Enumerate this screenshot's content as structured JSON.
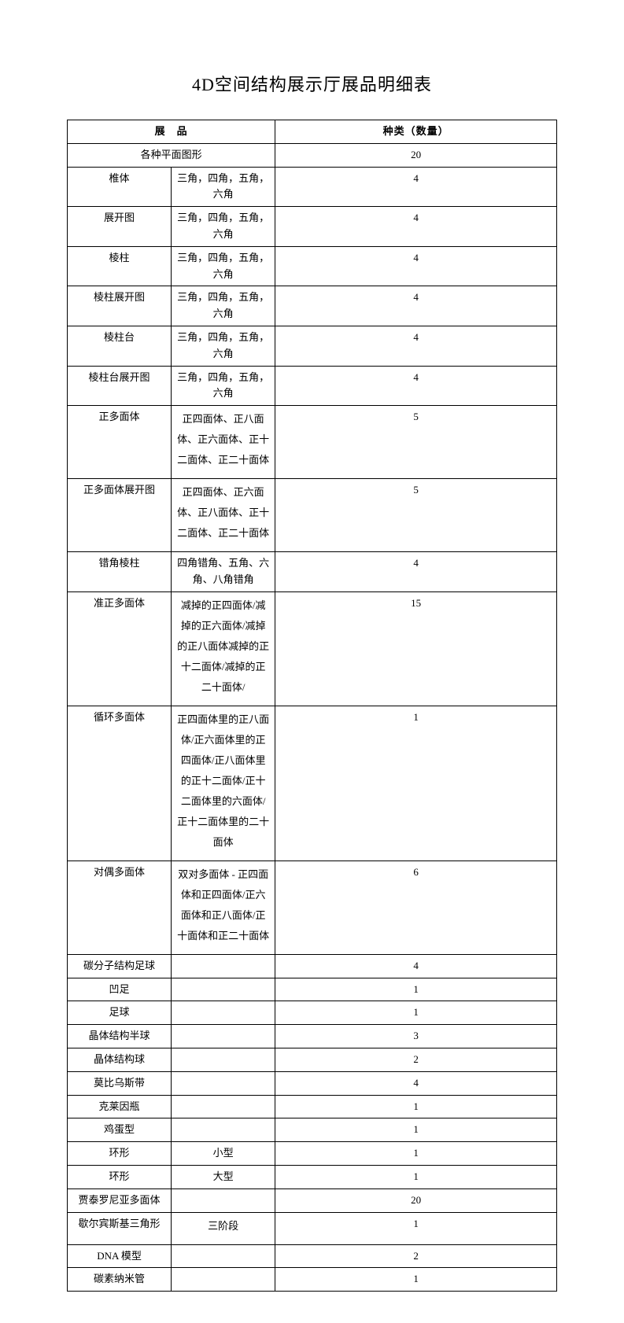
{
  "title": "4D空间结构展示厅展品明细表",
  "headers": {
    "exhibit": "展　品",
    "quantity": "种类（数量）"
  },
  "rows": [
    {
      "name_colspan": true,
      "desc": "各种平面图形",
      "qty": "20"
    },
    {
      "name": "椎体",
      "desc": "三角，四角，五角，六角",
      "qty": "4"
    },
    {
      "name": "展开图",
      "desc": "三角，四角，五角，六角",
      "qty": "4"
    },
    {
      "name": "棱柱",
      "desc": "三角，四角，五角，六角",
      "qty": "4"
    },
    {
      "name": "棱柱展开图",
      "desc": "三角，四角，五角，六角",
      "qty": "4"
    },
    {
      "name": "棱柱台",
      "desc": "三角，四角，五角，六角",
      "qty": "4"
    },
    {
      "name": "棱柱台展开图",
      "desc": "三角，四角，五角，六角",
      "qty": "4"
    },
    {
      "name": "正多面体",
      "desc": "正四面体、正八面体、正六面体、正十二面体、正二十面体",
      "qty": "5",
      "multiline": true
    },
    {
      "name": "正多面体展开图",
      "desc": "正四面体、正六面体、正八面体、正十二面体、正二十面体",
      "qty": "5",
      "multiline": true
    },
    {
      "name": "错角棱柱",
      "desc": "四角错角、五角、六角、八角错角",
      "qty": "4"
    },
    {
      "name": "准正多面体",
      "desc": "减掉的正四面体/减掉的正六面体/减掉的正八面体减掉的正十二面体/减掉的正二十面体/",
      "qty": "15",
      "multiline": true
    },
    {
      "name": "循环多面体",
      "desc": "正四面体里的正八面体/正六面体里的正四面体/正八面体里的正十二面体/正十二面体里的六面体/正十二面体里的二十面体",
      "qty": "1",
      "multiline": true
    },
    {
      "name": "对偶多面体",
      "desc": "双对多面体 - 正四面体和正四面体/正六面体和正八面体/正十面体和正二十面体",
      "qty": "6",
      "multiline": true
    },
    {
      "name": "碳分子结构足球",
      "desc": "",
      "qty": "4",
      "multiline": true
    },
    {
      "name": "凹足",
      "desc": "",
      "qty": "1"
    },
    {
      "name": "足球",
      "desc": "",
      "qty": "1"
    },
    {
      "name": "晶体结构半球",
      "desc": "",
      "qty": "3"
    },
    {
      "name": "晶体结构球",
      "desc": "",
      "qty": "2"
    },
    {
      "name": "莫比乌斯带",
      "desc": "",
      "qty": "4"
    },
    {
      "name": "克莱因瓶",
      "desc": "",
      "qty": "1"
    },
    {
      "name": "鸡蛋型",
      "desc": "",
      "qty": "1"
    },
    {
      "name": "环形",
      "desc": "小型",
      "qty": "1"
    },
    {
      "name": "环形",
      "desc": "大型",
      "qty": "1"
    },
    {
      "name": "贾泰罗尼亚多面体",
      "desc": "",
      "qty": "20",
      "multiline": true
    },
    {
      "name": "歇尔宾斯基三角形",
      "desc": "三阶段",
      "qty": "1",
      "multiline": true
    },
    {
      "name": "DNA 模型",
      "desc": "",
      "qty": "2"
    },
    {
      "name": "碳素纳米管",
      "desc": "",
      "qty": "1"
    }
  ]
}
